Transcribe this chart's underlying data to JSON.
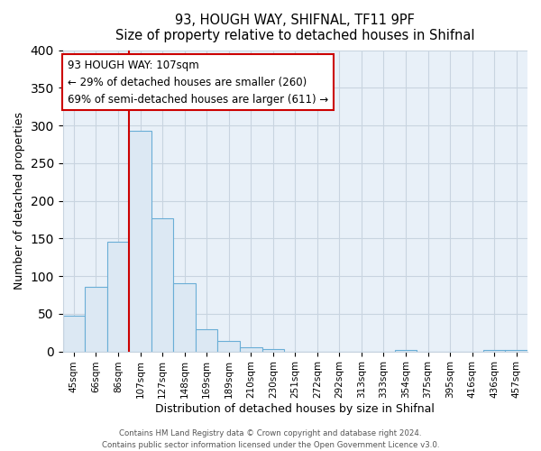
{
  "title": "93, HOUGH WAY, SHIFNAL, TF11 9PF",
  "subtitle": "Size of property relative to detached houses in Shifnal",
  "xlabel": "Distribution of detached houses by size in Shifnal",
  "ylabel": "Number of detached properties",
  "bar_labels": [
    "45sqm",
    "66sqm",
    "86sqm",
    "107sqm",
    "127sqm",
    "148sqm",
    "169sqm",
    "189sqm",
    "210sqm",
    "230sqm",
    "251sqm",
    "272sqm",
    "292sqm",
    "313sqm",
    "333sqm",
    "354sqm",
    "375sqm",
    "395sqm",
    "416sqm",
    "436sqm",
    "457sqm"
  ],
  "bar_values": [
    47,
    86,
    145,
    293,
    177,
    91,
    30,
    14,
    5,
    3,
    0,
    0,
    0,
    0,
    0,
    2,
    0,
    0,
    0,
    2,
    2
  ],
  "bar_color": "#dce8f3",
  "bar_edge_color": "#6aaed6",
  "vline_color": "#cc0000",
  "vline_bar_index": 3,
  "ylim": [
    0,
    400
  ],
  "yticks": [
    0,
    50,
    100,
    150,
    200,
    250,
    300,
    350,
    400
  ],
  "annotation_title": "93 HOUGH WAY: 107sqm",
  "annotation_line1": "← 29% of detached houses are smaller (260)",
  "annotation_line2": "69% of semi-detached houses are larger (611) →",
  "annotation_box_color": "#ffffff",
  "annotation_box_edge": "#cc0000",
  "footer1": "Contains HM Land Registry data © Crown copyright and database right 2024.",
  "footer2": "Contains public sector information licensed under the Open Government Licence v3.0.",
  "background_color": "#ffffff",
  "plot_bg_color": "#e8f0f8",
  "grid_color": "#c8d4e0"
}
